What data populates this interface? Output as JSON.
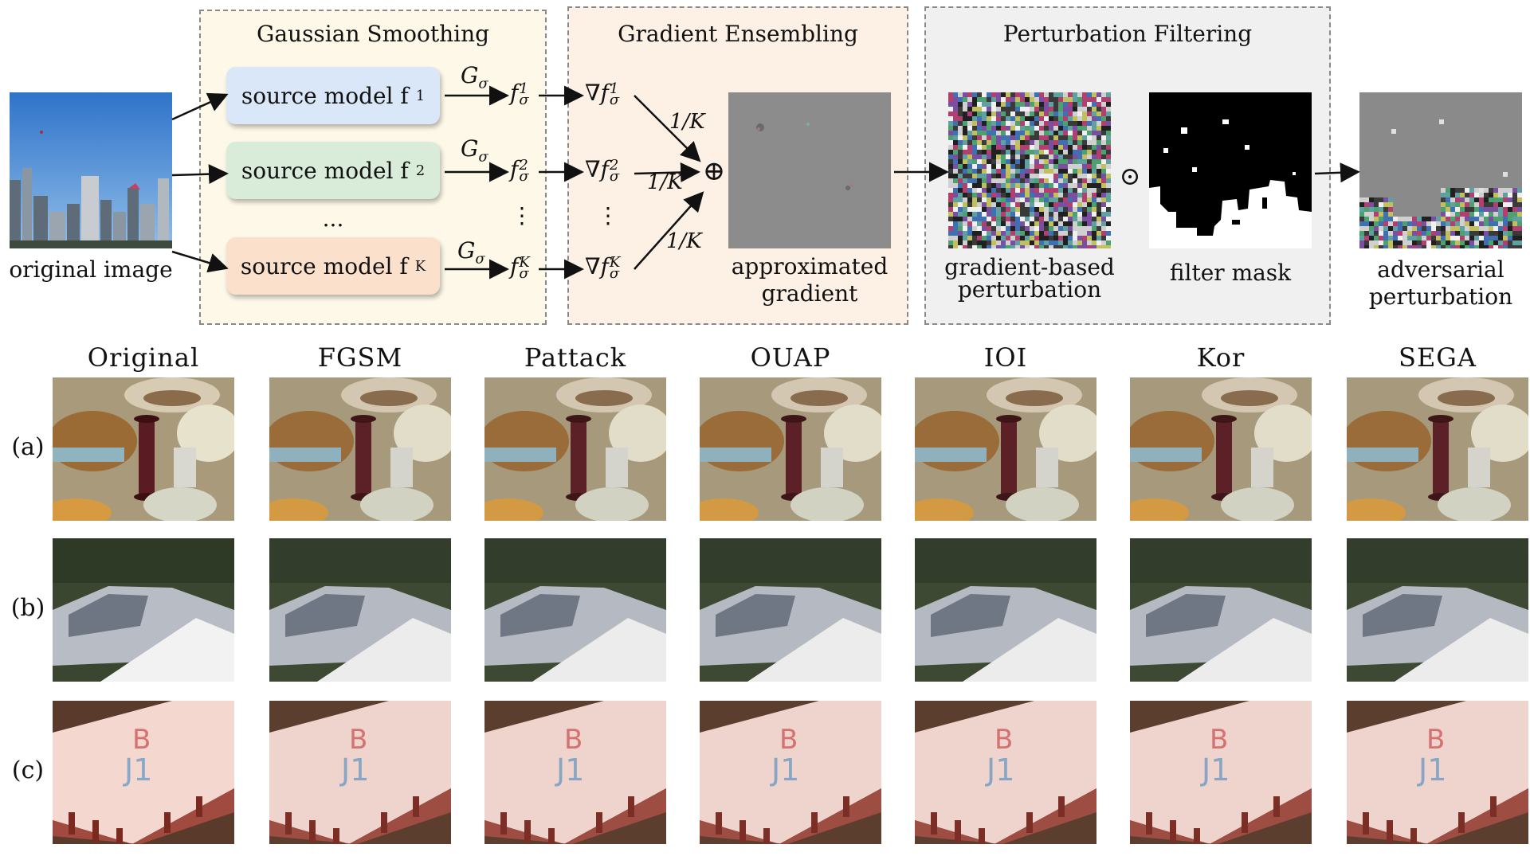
{
  "pipeline": {
    "original_image_label": "original image",
    "sections": {
      "smoothing": "Gaussian Smoothing",
      "ensembling": "Gradient Ensembling",
      "filtering": "Perturbation Filtering"
    },
    "models": [
      {
        "text": "source model f",
        "sup": "1",
        "color": "#d9e7f8"
      },
      {
        "text": "source model f",
        "sup": "2",
        "color": "#d9ecd9"
      },
      {
        "text": "source model f",
        "sup": "K",
        "color": "#fbe0cb"
      }
    ],
    "models_ellipsis": "...",
    "g_op": "G",
    "g_sub": "σ",
    "smoothed": [
      {
        "base": "f",
        "sub": "σ",
        "sup": "1"
      },
      {
        "base": "f",
        "sub": "σ",
        "sup": "2"
      },
      {
        "base": "f",
        "sub": "σ",
        "sup": "K"
      }
    ],
    "gradients": [
      {
        "base": "∇f",
        "sub": "σ",
        "sup": "1"
      },
      {
        "base": "∇f",
        "sub": "σ",
        "sup": "2"
      },
      {
        "base": "∇f",
        "sub": "σ",
        "sup": "K"
      }
    ],
    "vdots": "⋮",
    "weight": "1/K",
    "oplus": "⊕",
    "odot": "⊙",
    "approx_label_1": "approximated",
    "approx_label_2": "gradient",
    "gb_label_1": "gradient-based",
    "gb_label_2": "perturbation",
    "mask_label": "filter mask",
    "adv_label_1": "adversarial",
    "adv_label_2": "perturbation"
  },
  "comparison": {
    "columns": [
      "Original",
      "FGSM",
      "Pattack",
      "OUAP",
      "IOI",
      "Kor",
      "SEGA"
    ],
    "rows": [
      "(a)",
      "(b)",
      "(c)"
    ]
  },
  "colors": {
    "smoothing_bg": "#fdf8e8",
    "ensembling_bg": "#fdf0e4",
    "filtering_bg": "#f0f0f0",
    "perturb_gray": "#8a8a8a"
  }
}
